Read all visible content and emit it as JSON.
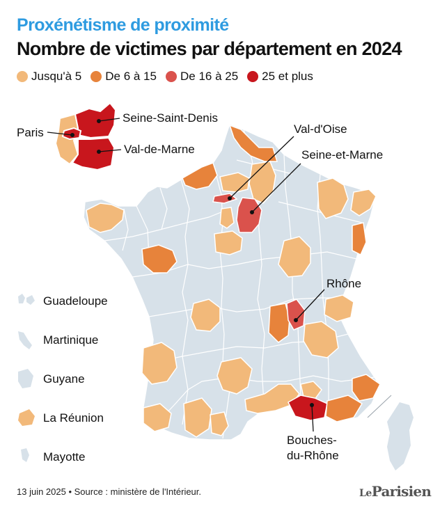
{
  "title": "Proxénétisme de proximité",
  "subtitle": "Nombre de victimes par département en 2024",
  "legend": [
    {
      "label": "Jusqu'à 5",
      "color": "#f2b97a"
    },
    {
      "label": "De 6 à 15",
      "color": "#e7833b"
    },
    {
      "label": "De 16 à 25",
      "color": "#da524c"
    },
    {
      "label": "25 et plus",
      "color": "#c8161d"
    }
  ],
  "colors": {
    "no_data": "#d7e1e9",
    "border": "#ffffff",
    "accent_title": "#2e9be0"
  },
  "map_labels": {
    "paris": "Paris",
    "seine_saint_denis": "Seine-Saint-Denis",
    "val_de_marne": "Val-de-Marne",
    "val_d_oise": "Val-d'Oise",
    "seine_et_marne": "Seine-et-Marne",
    "rhone": "Rhône",
    "bouches_du_rhone_1": "Bouches-",
    "bouches_du_rhone_2": "du-Rhône"
  },
  "overseas": [
    "Guadeloupe",
    "Martinique",
    "Guyane",
    "La Réunion",
    "Mayotte"
  ],
  "footer": "13 juin 2025 • Source : ministère de l'Intérieur.",
  "logo": {
    "le": "Le",
    "name": "Parisien"
  }
}
